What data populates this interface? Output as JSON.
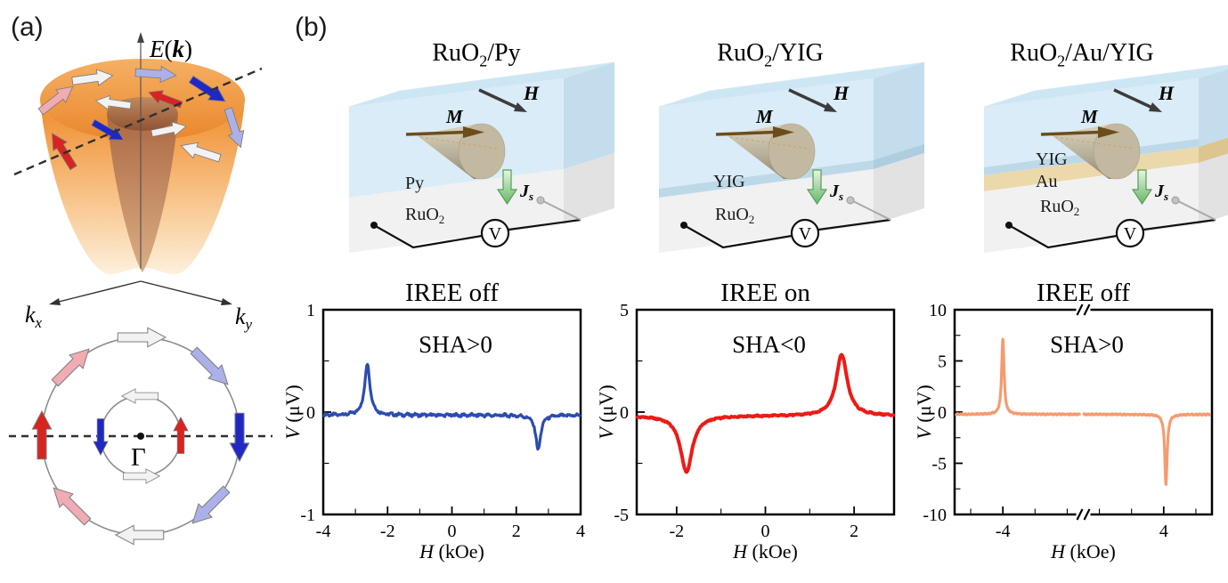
{
  "colors": {
    "annotation_red": "#c00000",
    "curve_blue": "#2d4cb0",
    "curve_red": "#ee1a15",
    "curve_orange": "#f59b70",
    "spin_up": "#d92320",
    "spin_down": "#2127c4",
    "spin_up_soft": "#f0abb3",
    "spin_down_soft": "#abb1e8",
    "spin_neutral": "#f2f2f2",
    "layer_blue": "#daecf7",
    "layer_gray": "#f1f1f1",
    "layer_gold": "#ecd9ab",
    "spin_current_green": "#1e8c28"
  },
  "panel_a": {
    "label": "(a)",
    "energy_label": {
      "e": "E",
      "open": "(",
      "k": "k",
      "close": ")"
    },
    "kx": {
      "base": "k",
      "sub": "x"
    },
    "ky": {
      "base": "k",
      "sub": "y"
    },
    "gamma": "Γ"
  },
  "panel_b": {
    "label": "(b)",
    "devices": [
      {
        "title": {
          "base": "RuO",
          "sub": "2",
          "rest": "/Py"
        },
        "field_label": "H",
        "magnetization_label": "M",
        "spin_current": {
          "base": "J",
          "sub": "s"
        },
        "voltmeter_label": "V",
        "layers": [
          {
            "base": "Py",
            "sub": ""
          },
          {
            "base": "RuO",
            "sub": "2"
          }
        ]
      },
      {
        "title": {
          "base": "RuO",
          "sub": "2",
          "rest": "/YIG"
        },
        "field_label": "H",
        "magnetization_label": "M",
        "spin_current": {
          "base": "J",
          "sub": "s"
        },
        "voltmeter_label": "V",
        "layers": [
          {
            "base": "YIG",
            "sub": ""
          },
          {
            "base": "RuO",
            "sub": "2"
          }
        ]
      },
      {
        "title": {
          "base": "RuO",
          "sub": "2",
          "rest": "/Au/YIG"
        },
        "field_label": "H",
        "magnetization_label": "M",
        "spin_current": {
          "base": "J",
          "sub": "s"
        },
        "voltmeter_label": "V",
        "layers": [
          {
            "base": "YIG",
            "sub": ""
          },
          {
            "base": "Au",
            "sub": ""
          },
          {
            "base": "RuO",
            "sub": "2"
          }
        ]
      }
    ]
  },
  "chart_data": [
    {
      "type": "line",
      "title": "IREE off",
      "annotation": "SHA>0",
      "annotation_color": "#c00000",
      "curve_color": "#2d4cb0",
      "stroke_width": 3.2,
      "xlabel_italic": "H",
      "xlabel_rest": " (kOe)",
      "ylabel_italic": "V",
      "ylabel_rest": " (μV)",
      "xlim": [
        -4,
        4
      ],
      "ylim": [
        -1,
        1
      ],
      "xticks": [
        -4,
        -2,
        0,
        2,
        4
      ],
      "yticks": [
        -1,
        0,
        1
      ],
      "x_minor_step": 1,
      "y_minor_step": 0.5,
      "baseline": -0.03,
      "noise": 0.022,
      "peaks": [
        {
          "center": -2.63,
          "amplitude": 0.5,
          "width": 0.1
        },
        {
          "center": 2.68,
          "amplitude": -0.34,
          "width": 0.09
        }
      ],
      "data_ranges": [
        [
          -3.97,
          3.97
        ]
      ]
    },
    {
      "type": "line",
      "title": "IREE on",
      "annotation": "SHA<0",
      "annotation_color": "#c00000",
      "curve_color": "#ee1a15",
      "stroke_width": 4,
      "xlabel_italic": "H",
      "xlabel_rest": " (kOe)",
      "ylabel_italic": "V",
      "ylabel_rest": " (μV)",
      "xlim": [
        -2.9,
        2.9
      ],
      "ylim": [
        -5,
        5
      ],
      "xticks": [
        -2,
        0,
        2
      ],
      "yticks": [
        -5,
        0,
        5
      ],
      "x_minor_step": 1,
      "y_minor_step": 2.5,
      "baseline": -0.18,
      "noise": 0.05,
      "peaks": [
        {
          "center": -1.78,
          "amplitude": -2.75,
          "width": 0.16
        },
        {
          "center": 1.72,
          "amplitude": 3.0,
          "width": 0.15
        }
      ],
      "data_ranges": [
        [
          -2.88,
          2.88
        ]
      ]
    },
    {
      "type": "line",
      "title": "IREE off",
      "annotation": "SHA>0",
      "annotation_color": "#c00000",
      "curve_color": "#f59b70",
      "stroke_width": 3.2,
      "xlabel_italic": "H",
      "xlabel_rest": " (kOe)",
      "ylabel_italic": "V",
      "ylabel_rest": " (μV)",
      "segments": [
        [
          -5.5,
          -1.5
        ],
        [
          1.5,
          5.5
        ]
      ],
      "axis_break": true,
      "ylim": [
        -10,
        10
      ],
      "xticks": [
        -4,
        4
      ],
      "yticks": [
        -10,
        -5,
        0,
        5,
        10
      ],
      "x_minor_step": 1,
      "y_minor_step": 2.5,
      "baseline": -0.22,
      "noise": 0.08,
      "peaks": [
        {
          "center": -4.0,
          "amplitude": 7.4,
          "width": 0.045
        },
        {
          "center": 4.07,
          "amplitude": -6.8,
          "width": 0.045
        }
      ],
      "data_ranges": [
        [
          -5.45,
          -1.62
        ],
        [
          1.52,
          5.43
        ]
      ]
    }
  ]
}
